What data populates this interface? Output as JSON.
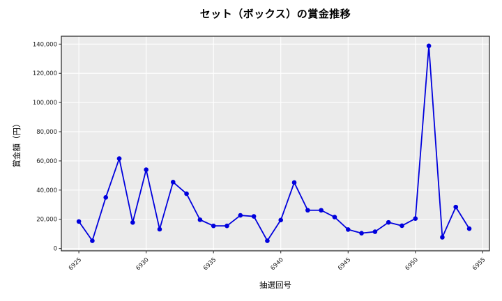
{
  "figure": {
    "background": "#ffffff"
  },
  "chart_data": {
    "type": "line",
    "title": "セット（ボックス）の賞金推移",
    "xlabel": "抽選回号",
    "ylabel": "賞金額（円）",
    "legend": "none",
    "grid": true,
    "x": [
      6925,
      6926,
      6927,
      6928,
      6929,
      6930,
      6931,
      6932,
      6933,
      6934,
      6935,
      6936,
      6937,
      6938,
      6939,
      6940,
      6941,
      6942,
      6943,
      6944,
      6945,
      6946,
      6947,
      6948,
      6949,
      6950,
      6951,
      6952,
      6953,
      6954
    ],
    "values": [
      18500,
      5300,
      35000,
      61600,
      17800,
      54000,
      13200,
      45500,
      37500,
      19700,
      15500,
      15500,
      22700,
      22000,
      5300,
      19500,
      45200,
      26200,
      26200,
      21500,
      13000,
      10500,
      11500,
      17900,
      15600,
      20500,
      138800,
      7700,
      28400,
      13600
    ],
    "xlim": [
      6923.7,
      6955.5
    ],
    "ylim": [
      -1600,
      145400
    ],
    "xticks": [
      6925,
      6930,
      6935,
      6940,
      6945,
      6950,
      6955
    ],
    "xtick_labels": [
      "6925",
      "6930",
      "6935",
      "6940",
      "6945",
      "6950",
      "6955"
    ],
    "yticks": [
      0,
      20000,
      40000,
      60000,
      80000,
      100000,
      120000,
      140000
    ],
    "ytick_labels": [
      "0",
      "20,000",
      "40,000",
      "60,000",
      "80,000",
      "100,000",
      "120,000",
      "140,000"
    ],
    "colors": {
      "line": "#0000dd",
      "marker": "#0000dd",
      "plot_background": "#ebebeb",
      "grid": "#ffffff",
      "spine": "#222222",
      "tick": "#222222"
    }
  }
}
